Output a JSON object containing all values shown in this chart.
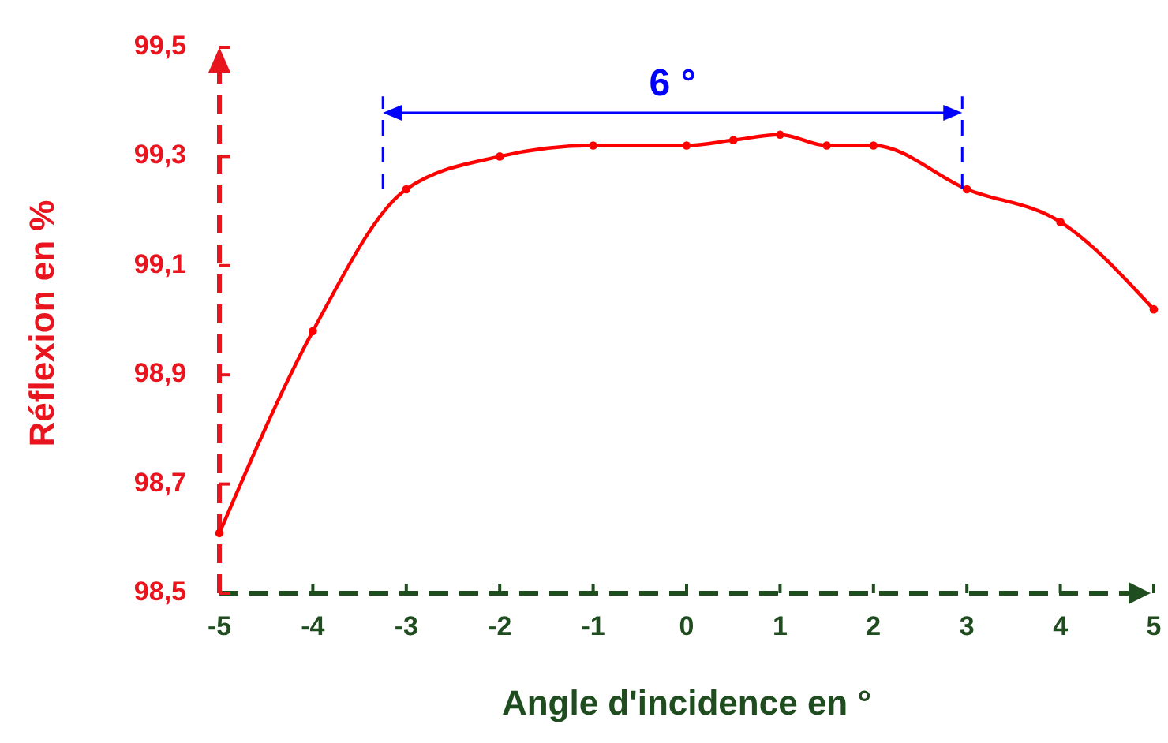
{
  "chart_data": {
    "type": "line",
    "xlabel": "Angle d'incidence en °",
    "ylabel": "Réflexion en %",
    "x": [
      -5,
      -4,
      -3,
      -2,
      -1,
      0,
      0.5,
      1,
      1.5,
      2,
      3,
      4,
      5
    ],
    "series": [
      {
        "color": "#ff0000",
        "values": [
          98.61,
          98.98,
          99.24,
          99.3,
          99.32,
          99.32,
          99.33,
          99.34,
          99.32,
          99.32,
          99.24,
          99.18,
          99.02
        ]
      }
    ],
    "xlim": [
      -5,
      5
    ],
    "xticks": [
      -5,
      -4,
      -3,
      -2,
      -1,
      0,
      1,
      2,
      3,
      4,
      5
    ],
    "ylim": [
      98.5,
      99.5
    ],
    "yticks": [
      {
        "value": 98.5,
        "label": "98,5"
      },
      {
        "value": 98.7,
        "label": "98,7"
      },
      {
        "value": 98.9,
        "label": "98,9"
      },
      {
        "value": 99.1,
        "label": "99,1"
      },
      {
        "value": 99.3,
        "label": "99,3"
      },
      {
        "value": 99.5,
        "label": "99,5"
      }
    ],
    "marker": "circle",
    "grid": false,
    "ref_lines": [
      {
        "axis": "x",
        "value": -3.25,
        "color": "#0000ff",
        "line_style": "dashed"
      },
      {
        "axis": "x",
        "value": 2.95,
        "color": "#0000ff",
        "line_style": "dashed"
      }
    ],
    "annotations": [
      "6 °"
    ]
  }
}
